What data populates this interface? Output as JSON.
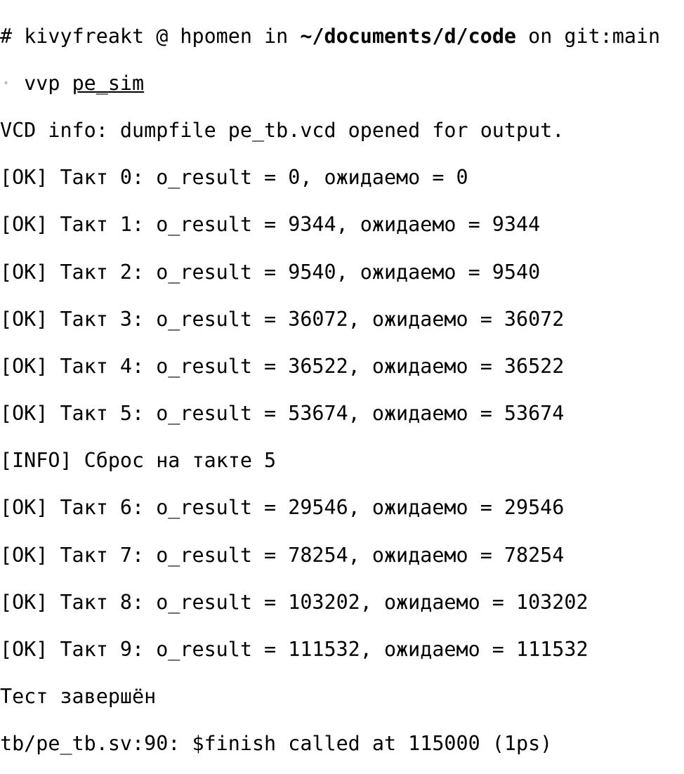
{
  "prompt": {
    "hash": "#",
    "user": "kivyfreakt",
    "at": "@",
    "host": "hpomen",
    "in": "in",
    "path": "~/documents/d/code",
    "on": "on",
    "branch": "git:main",
    "cmd_marker": "·",
    "command": "vvp",
    "arg": "pe_sim"
  },
  "output": [
    "VCD info: dumpfile pe_tb.vcd opened for output.",
    "[OK] Такт 0: o_result = 0, ожидаемо = 0",
    "[OK] Такт 1: o_result = 9344, ожидаемо = 9344",
    "[OK] Такт 2: o_result = 9540, ожидаемо = 9540",
    "[OK] Такт 3: o_result = 36072, ожидаемо = 36072",
    "[OK] Такт 4: o_result = 36522, ожидаемо = 36522",
    "[OK] Такт 5: o_result = 53674, ожидаемо = 53674",
    "[INFO] Сброс на такте 5",
    "[OK] Такт 6: o_result = 29546, ожидаемо = 29546",
    "[OK] Такт 7: o_result = 78254, ожидаемо = 78254",
    "[OK] Такт 8: o_result = 103202, ожидаемо = 103202",
    "[OK] Такт 9: o_result = 111532, ожидаемо = 111532",
    "Тест завершён",
    "tb/pe_tb.sv:90: $finish called at 115000 (1ps)"
  ]
}
